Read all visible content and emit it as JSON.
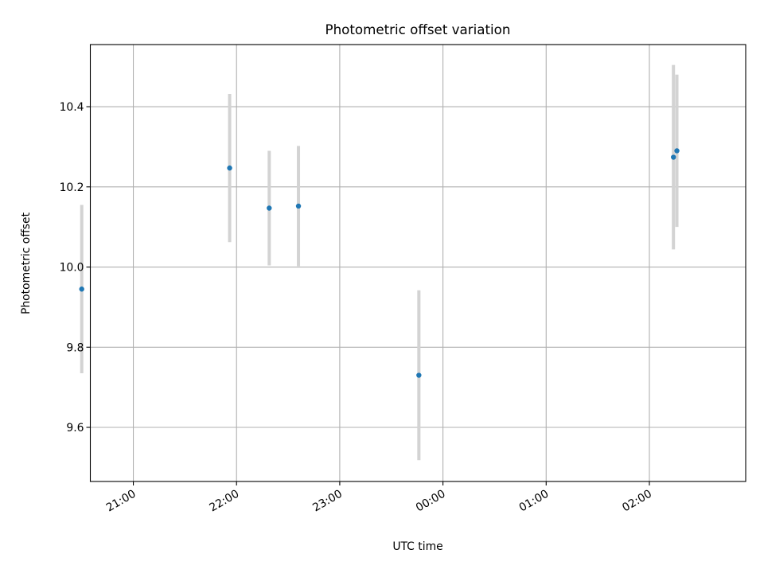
{
  "chart_data": {
    "type": "scatter",
    "title": "Photometric offset variation",
    "xlabel": "UTC time",
    "ylabel": "Photometric offset",
    "x_axis_type": "time",
    "xlim": [
      "20:35",
      "02:56"
    ],
    "ylim": [
      9.465,
      10.555
    ],
    "grid": true,
    "x_ticks": [
      "21:00",
      "22:00",
      "23:00",
      "00:00",
      "01:00",
      "02:00"
    ],
    "y_ticks": [
      9.6,
      9.8,
      10.0,
      10.2,
      10.4
    ],
    "y_tick_labels": [
      "9.6",
      "9.8",
      "10.0",
      "10.2",
      "10.4"
    ],
    "series": [
      {
        "color": "#1f77b4",
        "errorbar_color": "#d3d3d3",
        "points": [
          {
            "x": "20:30",
            "y": 9.945,
            "yerr": 0.21
          },
          {
            "x": "21:56",
            "y": 10.247,
            "yerr": 0.185
          },
          {
            "x": "22:19",
            "y": 10.147,
            "yerr": 0.143
          },
          {
            "x": "22:36",
            "y": 10.152,
            "yerr": 0.15
          },
          {
            "x": "23:46",
            "y": 9.73,
            "yerr": 0.212
          },
          {
            "x": "02:14",
            "y": 10.274,
            "yerr": 0.23
          },
          {
            "x": "02:16",
            "y": 10.29,
            "yerr": 0.19
          }
        ]
      }
    ]
  }
}
